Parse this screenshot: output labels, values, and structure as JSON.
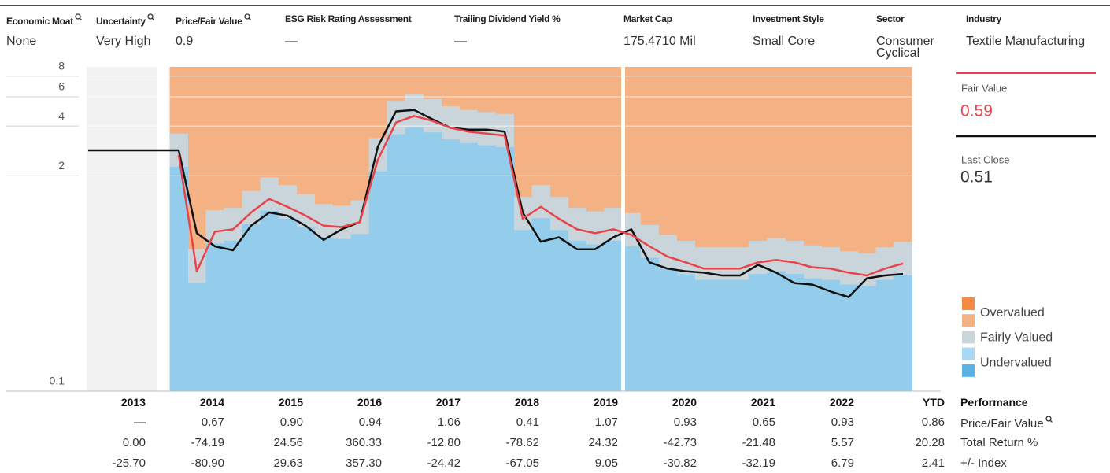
{
  "header": [
    {
      "label": "Economic Moat",
      "value": "None",
      "info_icon": true
    },
    {
      "label": "Uncertainty",
      "value": "Very High",
      "info_icon": true
    },
    {
      "label": "Price/Fair Value",
      "value": "0.9",
      "info_icon": true
    },
    {
      "label": "ESG Risk Rating Assessment",
      "value": "—",
      "info_icon": false
    },
    {
      "label": "Trailing Dividend Yield %",
      "value": "—",
      "info_icon": false
    },
    {
      "label": "Market Cap",
      "value": "175.4710 Mil",
      "info_icon": false
    },
    {
      "label": "Investment Style",
      "value": "Small Core",
      "info_icon": false
    },
    {
      "label": "Sector",
      "value": "Consumer Cyclical",
      "info_icon": false
    },
    {
      "label": "Industry",
      "value": "Textile Manufacturing",
      "info_icon": false
    }
  ],
  "chart_data": {
    "type": "line",
    "y_scale": "log",
    "ylim": [
      0.1,
      9.1
    ],
    "yticks": [
      0.1,
      2,
      4,
      6,
      8
    ],
    "grid": true,
    "categories": [
      null,
      null,
      null,
      null,
      null,
      null,
      null,
      null,
      null,
      null,
      null,
      null,
      null,
      null,
      null,
      null,
      null,
      null,
      null,
      null,
      null,
      null,
      null,
      null,
      null,
      null,
      null,
      null,
      null,
      null,
      null,
      null,
      null,
      null,
      null,
      null,
      null,
      null,
      null,
      null,
      null,
      null,
      null,
      null,
      null,
      null
    ],
    "series": [
      {
        "name": "Undervalued",
        "color": "#94cdec",
        "kind": "band",
        "values": [
          null,
          null,
          null,
          null,
          null,
          2.27,
          0.45,
          0.78,
          0.81,
          1.02,
          1.23,
          1.1,
          0.98,
          0.85,
          0.83,
          0.89,
          2.13,
          3.57,
          3.91,
          3.66,
          3.32,
          3.15,
          3.06,
          2.98,
          0.94,
          1.11,
          0.94,
          0.81,
          0.77,
          0.81,
          0.75,
          0.64,
          0.55,
          0.51,
          0.47,
          0.47,
          0.47,
          0.51,
          0.53,
          0.51,
          0.48,
          0.47,
          0.44,
          0.43,
          0.47,
          0.5
        ]
      },
      {
        "name": "Fairly Valued",
        "color": "#c9d5da",
        "kind": "band",
        "values": [
          null,
          null,
          null,
          null,
          null,
          3.6,
          0.72,
          1.24,
          1.28,
          1.62,
          1.96,
          1.76,
          1.55,
          1.35,
          1.32,
          1.42,
          3.38,
          5.67,
          6.21,
          5.81,
          5.27,
          5.0,
          4.86,
          4.73,
          1.49,
          1.76,
          1.49,
          1.28,
          1.22,
          1.28,
          1.19,
          1.01,
          0.88,
          0.81,
          0.74,
          0.74,
          0.74,
          0.81,
          0.84,
          0.81,
          0.76,
          0.74,
          0.7,
          0.68,
          0.74,
          0.8
        ]
      },
      {
        "name": "Last Close",
        "color": "#111111",
        "kind": "line",
        "values": [
          2.85,
          2.85,
          2.85,
          2.85,
          2.85,
          2.85,
          0.9,
          0.75,
          0.71,
          1.0,
          1.2,
          1.15,
          1.0,
          0.82,
          0.95,
          1.05,
          3.0,
          4.9,
          5.0,
          4.4,
          3.9,
          3.8,
          3.8,
          3.7,
          1.2,
          0.8,
          0.85,
          0.72,
          0.72,
          0.85,
          0.95,
          0.6,
          0.55,
          0.53,
          0.52,
          0.5,
          0.5,
          0.58,
          0.52,
          0.45,
          0.44,
          0.4,
          0.37,
          0.48,
          0.5,
          0.51
        ]
      },
      {
        "name": "Fair Value",
        "color": "#e8434b",
        "kind": "line",
        "values": [
          null,
          null,
          null,
          null,
          null,
          2.67,
          0.53,
          0.92,
          0.95,
          1.2,
          1.45,
          1.3,
          1.15,
          1.0,
          0.98,
          1.05,
          2.5,
          4.2,
          4.6,
          4.3,
          3.9,
          3.7,
          3.6,
          3.5,
          1.1,
          1.3,
          1.1,
          0.95,
          0.9,
          0.95,
          0.88,
          0.75,
          0.65,
          0.6,
          0.55,
          0.55,
          0.55,
          0.6,
          0.62,
          0.6,
          0.56,
          0.55,
          0.52,
          0.5,
          0.55,
          0.59
        ]
      }
    ],
    "panel": {
      "fair_value": 0.59,
      "last_close": 0.51
    },
    "legend": [
      {
        "label": "Overvalued",
        "colors": [
          "#f28c45",
          "#f4b183"
        ]
      },
      {
        "label": "Fairly Valued",
        "colors": [
          "#c9d5da"
        ]
      },
      {
        "label": "Undervalued",
        "colors": [
          "#a9d8f1",
          "#5ab3e3"
        ]
      }
    ]
  },
  "table": {
    "title": "Performance",
    "columns": [
      "2013",
      "2014",
      "2015",
      "2016",
      "2017",
      "2018",
      "2019",
      "2020",
      "2021",
      "2022",
      "YTD"
    ],
    "rows": [
      {
        "label": "Price/Fair Value",
        "info_icon": true,
        "cells": [
          "—",
          "0.67",
          "0.90",
          "0.94",
          "1.06",
          "0.41",
          "1.07",
          "0.93",
          "0.65",
          "0.93",
          "0.86"
        ]
      },
      {
        "label": "Total Return %",
        "info_icon": false,
        "cells": [
          "0.00",
          "-74.19",
          "24.56",
          "360.33",
          "-12.80",
          "-78.62",
          "24.32",
          "-42.73",
          "-21.48",
          "5.57",
          "20.28"
        ]
      },
      {
        "label": "+/- Index",
        "info_icon": false,
        "cells": [
          "-25.70",
          "-80.90",
          "29.63",
          "357.30",
          "-24.42",
          "-67.05",
          "9.05",
          "-30.82",
          "-32.19",
          "6.79",
          "2.41"
        ]
      }
    ]
  }
}
